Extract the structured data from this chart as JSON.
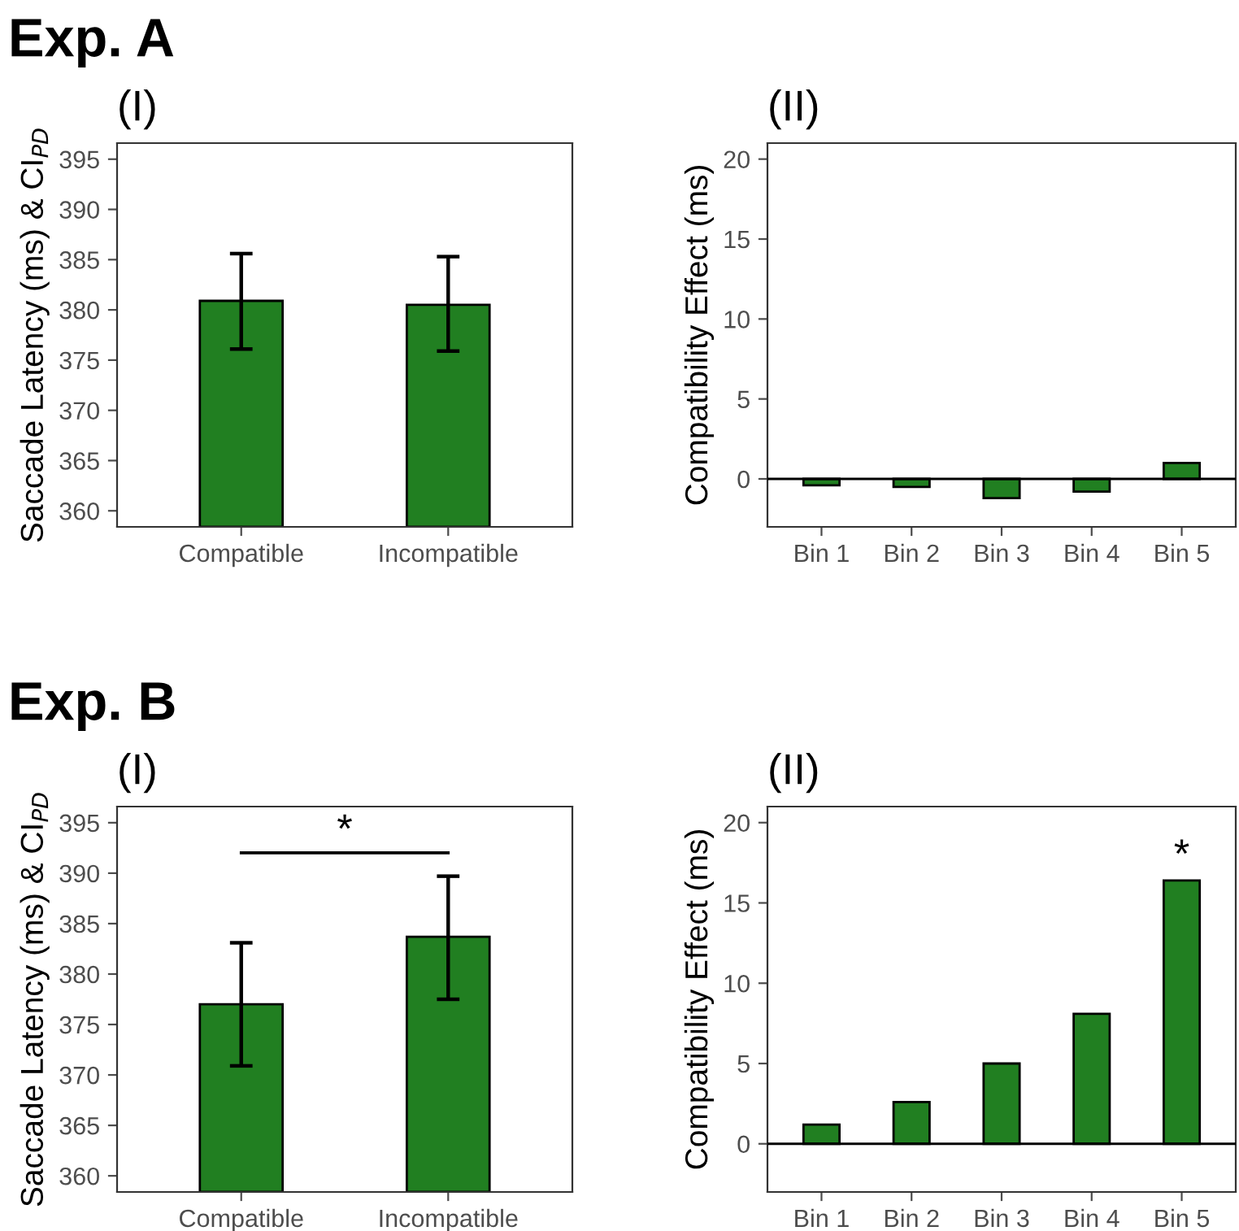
{
  "chart_data": [
    {
      "type": "bar",
      "title": "Exp. A",
      "subtitle": "(I)",
      "categories": [
        "Compatible",
        "Incompatible"
      ],
      "values": [
        380.9,
        380.5
      ],
      "errors": [
        [
          376.1,
          385.6
        ],
        [
          375.9,
          385.3
        ]
      ],
      "color": "#217f21",
      "ylabel": "Saccade Latency (ms) & CI$_{PD}$",
      "ylim": [
        358.4,
        396.6
      ],
      "yticks": [
        360,
        365,
        370,
        375,
        380,
        385,
        390,
        395
      ]
    },
    {
      "type": "bar",
      "subtitle": "(II)",
      "categories": [
        "Bin 1",
        "Bin 2",
        "Bin 3",
        "Bin 4",
        "Bin 5"
      ],
      "values": [
        -0.4,
        -0.5,
        -1.2,
        -0.8,
        1.0
      ],
      "color": "#217f21",
      "ylabel": "Compatibility Effect (ms)",
      "ylim": [
        -3,
        21
      ],
      "yticks": [
        0,
        5,
        10,
        15,
        20
      ],
      "ref_lines": [
        {
          "axis": "y",
          "value": 0,
          "color": "#000000"
        }
      ]
    },
    {
      "type": "bar",
      "title": "Exp. B",
      "subtitle": "(I)",
      "annotations": [
        "*"
      ],
      "categories": [
        "Compatible",
        "Incompatible"
      ],
      "values": [
        377.0,
        383.7
      ],
      "errors": [
        [
          370.9,
          383.1
        ],
        [
          377.5,
          389.7
        ]
      ],
      "color": "#217f21",
      "ylabel": "Saccade Latency (ms) & CI$_{PD}$",
      "ylim": [
        358.4,
        396.6
      ],
      "yticks": [
        360,
        365,
        370,
        375,
        380,
        385,
        390,
        395
      ]
    },
    {
      "type": "bar",
      "subtitle": "(II)",
      "annotations": [
        "*"
      ],
      "categories": [
        "Bin 1",
        "Bin 2",
        "Bin 3",
        "Bin 4",
        "Bin 5"
      ],
      "values": [
        1.2,
        2.6,
        5.0,
        8.1,
        16.4
      ],
      "color": "#217f21",
      "ylabel": "Compatibility Effect (ms)",
      "ylim": [
        -3,
        21
      ],
      "yticks": [
        0,
        5,
        10,
        15,
        20
      ],
      "ref_lines": [
        {
          "axis": "y",
          "value": 0,
          "color": "#000000"
        }
      ]
    }
  ]
}
